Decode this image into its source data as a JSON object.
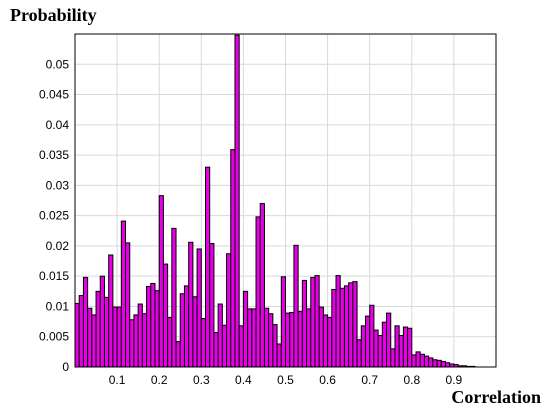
{
  "colors": {
    "bar_fill": "#e600e6",
    "bar_edge": "#000000",
    "grid": "#d9d9d9"
  },
  "chart_data": {
    "type": "bar",
    "ylabel": "Probability",
    "xlabel": "Correlation",
    "xlim": [
      0,
      1
    ],
    "ylim": [
      0,
      0.055
    ],
    "grid": true,
    "x_ticks": [
      0.1,
      0.2,
      0.3,
      0.4,
      0.5,
      0.6,
      0.7,
      0.8,
      0.9
    ],
    "x_tick_labels": [
      "0.1",
      "0.2",
      "0.3",
      "0.4",
      "0.5",
      "0.6",
      "0.7",
      "0.8",
      "0.9"
    ],
    "y_ticks": [
      0,
      0.005,
      0.01,
      0.015,
      0.02,
      0.025,
      0.03,
      0.035,
      0.04,
      0.045,
      0.05
    ],
    "y_tick_labels": [
      "0",
      "0.005",
      "0.01",
      "0.015",
      "0.02",
      "0.025",
      "0.03",
      "0.035",
      "0.04",
      "0.045",
      "0.05"
    ],
    "bin_width": 0.01,
    "x": [
      0.005,
      0.015,
      0.025,
      0.035,
      0.045,
      0.055,
      0.065,
      0.075,
      0.085,
      0.095,
      0.105,
      0.115,
      0.125,
      0.135,
      0.145,
      0.155,
      0.165,
      0.175,
      0.185,
      0.195,
      0.205,
      0.215,
      0.225,
      0.235,
      0.245,
      0.255,
      0.265,
      0.275,
      0.285,
      0.295,
      0.305,
      0.315,
      0.325,
      0.335,
      0.345,
      0.355,
      0.365,
      0.375,
      0.385,
      0.395,
      0.405,
      0.415,
      0.425,
      0.435,
      0.445,
      0.455,
      0.465,
      0.475,
      0.485,
      0.495,
      0.505,
      0.515,
      0.525,
      0.535,
      0.545,
      0.555,
      0.565,
      0.575,
      0.585,
      0.595,
      0.605,
      0.615,
      0.625,
      0.635,
      0.645,
      0.655,
      0.665,
      0.675,
      0.685,
      0.695,
      0.705,
      0.715,
      0.725,
      0.735,
      0.745,
      0.755,
      0.765,
      0.775,
      0.785,
      0.795,
      0.805,
      0.815,
      0.825,
      0.835,
      0.845,
      0.855,
      0.865,
      0.875,
      0.885,
      0.895,
      0.905,
      0.915,
      0.925,
      0.935,
      0.945,
      0.955,
      0.965,
      0.975,
      0.985,
      0.995
    ],
    "values": [
      0.0105,
      0.0118,
      0.0148,
      0.0097,
      0.0086,
      0.0125,
      0.015,
      0.0115,
      0.0185,
      0.0099,
      0.0099,
      0.0241,
      0.0205,
      0.0078,
      0.0086,
      0.0104,
      0.0088,
      0.0133,
      0.0138,
      0.0126,
      0.0283,
      0.017,
      0.0082,
      0.0229,
      0.0042,
      0.0121,
      0.0134,
      0.0206,
      0.0116,
      0.0195,
      0.008,
      0.033,
      0.0204,
      0.0057,
      0.0104,
      0.0069,
      0.0187,
      0.0359,
      0.0548,
      0.0068,
      0.0125,
      0.0096,
      0.0096,
      0.0248,
      0.027,
      0.0097,
      0.0088,
      0.007,
      0.0038,
      0.0149,
      0.0089,
      0.009,
      0.0201,
      0.0092,
      0.0143,
      0.0096,
      0.0148,
      0.0151,
      0.0099,
      0.0086,
      0.0082,
      0.0128,
      0.0151,
      0.013,
      0.0134,
      0.0139,
      0.0141,
      0.0045,
      0.0068,
      0.0084,
      0.0102,
      0.0061,
      0.0052,
      0.0074,
      0.0089,
      0.003,
      0.0068,
      0.0052,
      0.0066,
      0.0064,
      0.002,
      0.0025,
      0.0021,
      0.0018,
      0.0015,
      0.0012,
      0.0011,
      0.0009,
      0.0007,
      0.0005,
      0.0004,
      0.0002,
      0.0002,
      0.0001,
      0.0001,
      0,
      0,
      0,
      0,
      0
    ]
  }
}
